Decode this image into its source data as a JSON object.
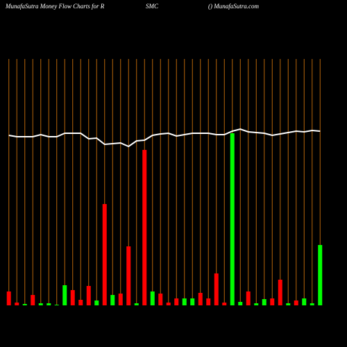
{
  "chart_data": {
    "type": "bar-line",
    "title": "MunafaSutra  Money Flow  Charts for R",
    "title_middle": "SMC",
    "title_right": "() MunafaSutra.com",
    "categories": [
      null,
      null,
      null,
      null,
      null,
      null,
      null,
      null,
      null,
      null,
      null,
      null,
      null,
      null,
      null,
      null,
      null,
      null,
      null,
      null,
      null,
      null,
      null,
      null,
      null,
      null,
      null,
      null,
      null,
      null,
      null,
      null,
      null,
      null,
      null,
      null,
      null,
      null,
      null,
      null
    ],
    "ylim": [
      0,
      355
    ],
    "series": [
      {
        "type": "bar",
        "values": [
          20,
          4,
          2,
          15,
          3,
          3,
          1,
          29,
          22,
          8,
          28,
          7,
          146,
          15,
          17,
          85,
          3,
          224,
          20,
          17,
          4,
          10,
          10,
          10,
          18,
          10,
          46,
          4,
          248,
          5,
          20,
          3,
          9,
          10,
          37,
          3,
          7,
          10,
          3,
          87
        ],
        "colors": [
          "#ff0000",
          "#ff0000",
          "#00ff00",
          "#ff0000",
          "#00ff00",
          "#00ff00",
          "#00ff00",
          "#00ff00",
          "#ff0000",
          "#ff0000",
          "#ff0000",
          "#00ff00",
          "#ff0000",
          "#00ff00",
          "#ff0000",
          "#ff0000",
          "#00ff00",
          "#ff0000",
          "#00ff00",
          "#ff0000",
          "#ff0000",
          "#ff0000",
          "#00ff00",
          "#00ff00",
          "#ff0000",
          "#ff0000",
          "#ff0000",
          "#ff0000",
          "#00ff00",
          "#00ff00",
          "#ff0000",
          "#00ff00",
          "#00ff00",
          "#ff0000",
          "#ff0000",
          "#00ff00",
          "#ff0000",
          "#00ff00",
          "#00ff00",
          "#00ff00"
        ]
      },
      {
        "type": "line",
        "color": "#ffffff",
        "values": [
          245,
          243,
          243,
          243,
          246,
          243,
          243,
          248,
          248,
          248,
          240,
          241,
          232,
          233,
          234,
          229,
          237,
          238,
          245,
          247,
          248,
          244,
          246,
          248,
          248,
          248,
          246,
          246,
          251,
          254,
          250,
          249,
          248,
          245,
          247,
          249,
          251,
          250,
          252,
          251
        ]
      }
    ],
    "gridline_color": "#b8660b"
  }
}
